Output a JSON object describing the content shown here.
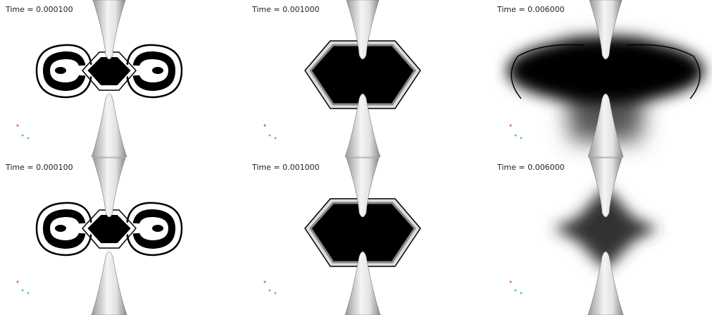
{
  "panels": [
    {
      "label": "Time = 0.000100"
    },
    {
      "label": "Time = 0.001000"
    },
    {
      "label": "Time = 0.006000"
    },
    {
      "label": "Time = 0.000100"
    },
    {
      "label": "Time = 0.001000"
    },
    {
      "label": "Time = 0.006000"
    }
  ]
}
